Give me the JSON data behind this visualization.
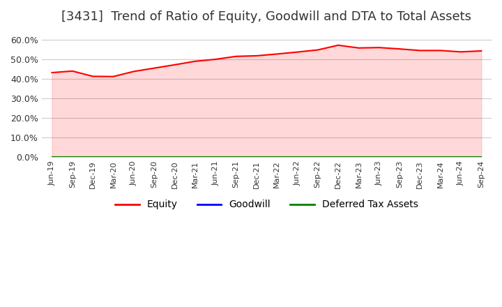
{
  "title": "[3431]  Trend of Ratio of Equity, Goodwill and DTA to Total Assets",
  "title_fontsize": 13,
  "xlabel": "",
  "ylabel": "",
  "ylim": [
    0.0,
    0.65
  ],
  "yticks": [
    0.0,
    0.1,
    0.2,
    0.3,
    0.4,
    0.5,
    0.6
  ],
  "background_color": "#ffffff",
  "plot_bg_color": "#ffffff",
  "grid_color": "#cccccc",
  "x_labels": [
    "Jun-19",
    "Sep-19",
    "Dec-19",
    "Mar-20",
    "Jun-20",
    "Sep-20",
    "Dec-20",
    "Mar-21",
    "Jun-21",
    "Sep-21",
    "Dec-21",
    "Mar-22",
    "Jun-22",
    "Sep-22",
    "Dec-22",
    "Mar-23",
    "Jun-23",
    "Sep-23",
    "Dec-23",
    "Mar-24",
    "Jun-24",
    "Sep-24"
  ],
  "equity": [
    0.432,
    0.44,
    0.413,
    0.412,
    0.438,
    0.455,
    0.472,
    0.49,
    0.5,
    0.515,
    0.518,
    0.527,
    0.537,
    0.548,
    0.572,
    0.558,
    0.56,
    0.553,
    0.545,
    0.545,
    0.538,
    0.543
  ],
  "goodwill": [
    0,
    0,
    0,
    0,
    0,
    0,
    0,
    0,
    0,
    0,
    0,
    0,
    0,
    0,
    0,
    0,
    0,
    0,
    0,
    0,
    0,
    0
  ],
  "dta": [
    0,
    0,
    0,
    0,
    0,
    0,
    0,
    0,
    0,
    0,
    0,
    0,
    0,
    0,
    0,
    0,
    0,
    0,
    0,
    0,
    0,
    0
  ],
  "equity_color": "#ff0000",
  "goodwill_color": "#0000ff",
  "dta_color": "#008000",
  "line_width": 1.5,
  "legend_labels": [
    "Equity",
    "Goodwill",
    "Deferred Tax Assets"
  ],
  "legend_ncol": 3,
  "fill_alpha": 0.15
}
